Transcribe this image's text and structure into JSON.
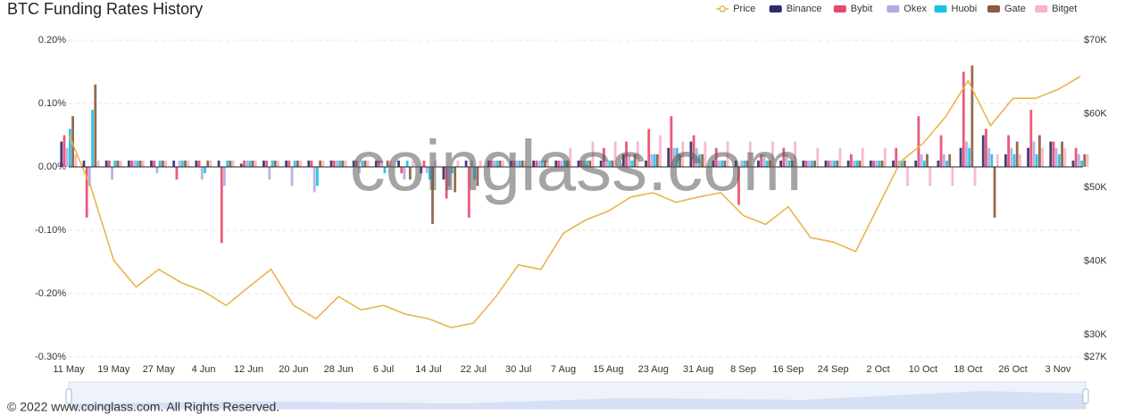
{
  "chart_data": {
    "type": "bar",
    "title": "BTC Funding Rates History",
    "watermark": "coinglass.com",
    "footer": "© 2022 www.coinglass.com. All Rights Reserved.",
    "categories": [
      "11 May",
      null,
      "19 May",
      null,
      "27 May",
      null,
      "4 Jun",
      null,
      "12 Jun",
      null,
      "20 Jun",
      null,
      "28 Jun",
      null,
      "6 Jul",
      null,
      "14 Jul",
      null,
      "22 Jul",
      null,
      "30 Jul",
      null,
      "7 Aug",
      null,
      "15 Aug",
      null,
      "23 Aug",
      null,
      "31 Aug",
      null,
      "8 Sep",
      null,
      "16 Sep",
      null,
      "24 Sep",
      null,
      "2 Oct",
      null,
      "10 Oct",
      null,
      "18 Oct",
      null,
      "26 Oct",
      null,
      "3 Nov",
      null
    ],
    "ylim": [
      -0.3,
      0.2
    ],
    "yticks": [
      {
        "value": 0.2,
        "label": "0.20%"
      },
      {
        "value": 0.1,
        "label": "0.10%"
      },
      {
        "value": 0,
        "label": "0.00%"
      },
      {
        "value": -0.1,
        "label": "-0.10%"
      },
      {
        "value": -0.2,
        "label": "-0.20%"
      },
      {
        "value": -0.3,
        "label": "-0.30%"
      }
    ],
    "y2lim": [
      27000,
      70000
    ],
    "y2ticks": [
      {
        "value": 70000,
        "label": "$70K"
      },
      {
        "value": 60000,
        "label": "$60K"
      },
      {
        "value": 50000,
        "label": "$50K"
      },
      {
        "value": 40000,
        "label": "$40K"
      },
      {
        "value": 30000,
        "label": "$30K"
      },
      {
        "value": 27000,
        "label": "$27K"
      }
    ],
    "grid": true,
    "legend": "top-right",
    "series": [
      {
        "name": "Price",
        "type": "line",
        "axis": "y2",
        "color": "#e8b64c",
        "values": [
          57200,
          49900,
          40100,
          36500,
          38900,
          37100,
          35900,
          34000,
          36500,
          38900,
          34000,
          32200,
          35200,
          33400,
          34000,
          32800,
          32200,
          31000,
          31600,
          35200,
          39500,
          38900,
          43800,
          45600,
          46800,
          48700,
          49300,
          48000,
          48700,
          49300,
          46200,
          45000,
          47400,
          43200,
          42600,
          41300,
          47400,
          53500,
          56000,
          59600,
          64500,
          58400,
          62100,
          62100,
          63300,
          65100
        ]
      },
      {
        "name": "Binance",
        "color": "#2b2b6b",
        "values": [
          0.04,
          0.01,
          0.01,
          0.01,
          0.01,
          0.01,
          0.01,
          0.01,
          0.005,
          0.01,
          0.01,
          0.01,
          0.01,
          0.01,
          0.01,
          0.01,
          -0.01,
          -0.02,
          0.01,
          0.01,
          0.01,
          0.01,
          0.01,
          0.01,
          0.01,
          0.02,
          0.01,
          0.03,
          0.04,
          0.01,
          0.01,
          0.01,
          0.01,
          0.01,
          0.01,
          0.01,
          0.01,
          0.01,
          0.01,
          0.01,
          0.03,
          0.05,
          0.02,
          0.03,
          0.04,
          0.01
        ]
      },
      {
        "name": "Bybit",
        "color": "#e8486a",
        "values": [
          0.05,
          -0.08,
          0.01,
          0.01,
          0.01,
          -0.02,
          0.01,
          -0.12,
          0.01,
          0.01,
          0.01,
          0.01,
          0.01,
          0.01,
          0.01,
          -0.01,
          0.01,
          -0.05,
          -0.08,
          0.01,
          0.01,
          0.01,
          0.01,
          0.01,
          0.03,
          0.04,
          0.06,
          0.08,
          0.05,
          0.03,
          -0.06,
          0.02,
          0.03,
          0.01,
          0.01,
          0.02,
          0.01,
          0.03,
          0.08,
          0.05,
          0.15,
          0.06,
          0.05,
          0.09,
          0.04,
          0.03
        ]
      },
      {
        "name": "Okex",
        "color": "#b3a9e3",
        "values": [
          0.03,
          -0.03,
          -0.02,
          0.01,
          -0.01,
          0.01,
          -0.02,
          -0.03,
          0.01,
          -0.02,
          -0.03,
          -0.04,
          0.01,
          -0.01,
          0.01,
          -0.02,
          -0.01,
          -0.03,
          0.01,
          0.01,
          0.01,
          0.01,
          0.01,
          0.01,
          0.01,
          0.02,
          0.02,
          0.03,
          0.03,
          0.01,
          0.01,
          0.02,
          0.02,
          0.01,
          0.01,
          0.01,
          0.01,
          0.01,
          0.02,
          0.02,
          0.04,
          0.03,
          0.03,
          0.04,
          0.03,
          0.02
        ]
      },
      {
        "name": "Huobi",
        "color": "#19c1e3",
        "values": [
          0.06,
          0.09,
          0.01,
          0.01,
          0.01,
          0.01,
          -0.01,
          0.01,
          0.01,
          0.01,
          0.01,
          -0.03,
          0.01,
          0.01,
          -0.01,
          0.01,
          -0.02,
          -0.01,
          -0.02,
          0.01,
          0.01,
          0.01,
          0.01,
          0.01,
          0.01,
          0.01,
          0.02,
          0.03,
          0.02,
          0.01,
          0.01,
          0.01,
          0.01,
          0.01,
          0.01,
          0.01,
          0.01,
          0.01,
          0.01,
          0.01,
          0.03,
          0.02,
          0.02,
          0.02,
          0.02,
          0.01
        ]
      },
      {
        "name": "Gate",
        "color": "#8c5a3c",
        "values": [
          0.08,
          0.13,
          0.01,
          0.01,
          0.01,
          0.01,
          0.01,
          0.01,
          0.01,
          0.01,
          0.01,
          0.01,
          0.01,
          0.01,
          0.01,
          -0.02,
          -0.09,
          -0.04,
          -0.03,
          0.01,
          0.01,
          0.01,
          0.01,
          0.01,
          0.01,
          0.02,
          0.02,
          0.02,
          0.02,
          0.01,
          0.01,
          0.01,
          0.01,
          0.01,
          0.01,
          0.01,
          0.01,
          0.01,
          0.02,
          0.02,
          0.16,
          -0.08,
          0.04,
          0.05,
          0.04,
          0.02
        ]
      },
      {
        "name": "Bitget",
        "color": "#f6b3cb",
        "values": [
          0.02,
          0.01,
          0.01,
          0.01,
          0.01,
          0.01,
          0.01,
          0.01,
          0.01,
          0.01,
          0.01,
          0.01,
          0.01,
          0.01,
          0.01,
          0.01,
          0.01,
          0.01,
          0.01,
          0.01,
          0.01,
          0.01,
          0.03,
          0.04,
          0.04,
          0.04,
          0.05,
          0.04,
          0.04,
          0.04,
          0.04,
          0.04,
          0.04,
          0.03,
          0.03,
          0.03,
          0.03,
          -0.03,
          -0.03,
          -0.03,
          -0.03,
          0.02,
          0.02,
          0.03,
          0.03,
          0.02
        ]
      }
    ]
  }
}
